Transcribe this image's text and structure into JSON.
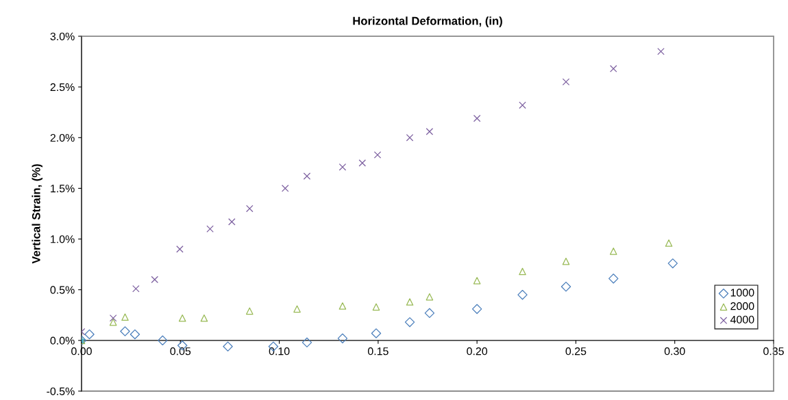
{
  "chart_data": {
    "type": "scatter",
    "title": "Horizontal Deformation, (in)",
    "ylabel": "Vertical Strain, (%)",
    "xlim": [
      0,
      0.35
    ],
    "xticks": [
      {
        "value": 0,
        "label": "0.00"
      },
      {
        "value": 0.05,
        "label": "0.05"
      },
      {
        "value": 0.1,
        "label": "0.10"
      },
      {
        "value": 0.15,
        "label": "0.15"
      },
      {
        "value": 0.2,
        "label": "0.20"
      },
      {
        "value": 0.25,
        "label": "0.25"
      },
      {
        "value": 0.3,
        "label": "0.30"
      },
      {
        "value": 0.35,
        "label": "0.35"
      }
    ],
    "ylim": [
      -0.5,
      3.0
    ],
    "yticks": [
      {
        "value": -0.5,
        "label": "-0.5%"
      },
      {
        "value": 0,
        "label": "0.0%"
      },
      {
        "value": 0.5,
        "label": "0.5%"
      },
      {
        "value": 1.0,
        "label": "1.0%"
      },
      {
        "value": 1.5,
        "label": "1.5%"
      },
      {
        "value": 2.0,
        "label": "2.0%"
      },
      {
        "value": 2.5,
        "label": "2.5%"
      },
      {
        "value": 3.0,
        "label": "3.0%"
      }
    ],
    "grid": false,
    "legend": "bottom right",
    "series": [
      {
        "name": "1000",
        "color": "#4a7ebb",
        "marker": "diamond",
        "x": [
          0,
          0.004,
          0.022,
          0.027,
          0.041,
          0.051,
          0.074,
          0.097,
          0.114,
          0.132,
          0.149,
          0.166,
          0.176,
          0.2,
          0.223,
          0.245,
          0.269,
          0.299
        ],
        "values": [
          0,
          0.06,
          0.09,
          0.06,
          0.0,
          -0.05,
          -0.06,
          -0.06,
          -0.02,
          0.02,
          0.07,
          0.18,
          0.27,
          0.31,
          0.45,
          0.53,
          0.61,
          0.76
        ]
      },
      {
        "name": "2000",
        "color": "#98b954",
        "marker": "triangle",
        "x": [
          0,
          0.016,
          0.022,
          0.051,
          0.062,
          0.085,
          0.109,
          0.132,
          0.149,
          0.166,
          0.176,
          0.2,
          0.223,
          0.245,
          0.269,
          0.297
        ],
        "values": [
          0,
          0.18,
          0.23,
          0.22,
          0.22,
          0.29,
          0.31,
          0.34,
          0.33,
          0.38,
          0.43,
          0.59,
          0.68,
          0.78,
          0.88,
          0.96
        ]
      },
      {
        "name": "4000",
        "color": "#7d60a0",
        "marker": "cross",
        "x": [
          0,
          0.016,
          0.0275,
          0.037,
          0.0497,
          0.065,
          0.076,
          0.085,
          0.103,
          0.114,
          0.132,
          0.142,
          0.1497,
          0.166,
          0.176,
          0.2,
          0.223,
          0.245,
          0.269,
          0.293
        ],
        "values": [
          0.086,
          0.22,
          0.51,
          0.6,
          0.9,
          1.1,
          1.17,
          1.3,
          1.5,
          1.62,
          1.71,
          1.75,
          1.83,
          2.0,
          2.06,
          2.19,
          2.32,
          2.55,
          2.68,
          2.85
        ]
      },
      {
        "color": "#4bacc6",
        "marker": "star",
        "x": [
          0
        ],
        "values": [
          0
        ]
      }
    ]
  }
}
